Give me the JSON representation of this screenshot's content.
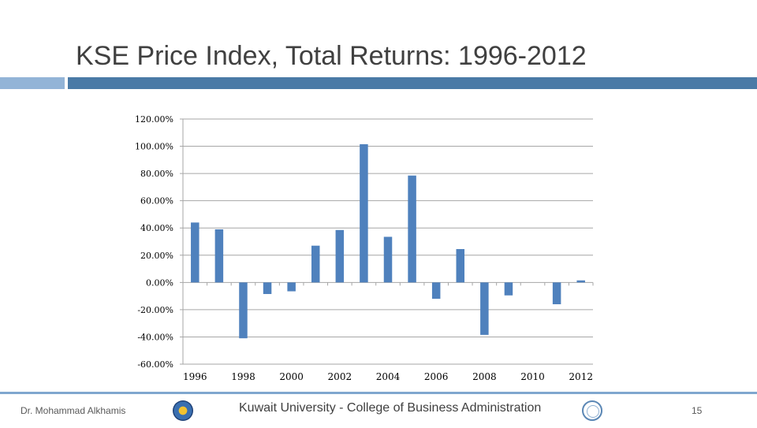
{
  "slide": {
    "title": "KSE Price Index, Total Returns: 1996-2012",
    "footer_author": "Dr. Mohammad Alkhamis",
    "footer_center": "Kuwait University - College of Business Administration",
    "page_number": "15"
  },
  "colors": {
    "bar": "#4f81bd",
    "title_rule_dark": "#4a7aa6",
    "title_rule_light": "#93b4d7",
    "gridline": "#a6a6a6"
  },
  "chart_data": {
    "type": "bar",
    "title": "",
    "xlabel": "",
    "ylabel": "",
    "categories": [
      1996,
      1997,
      1998,
      1999,
      2000,
      2001,
      2002,
      2003,
      2004,
      2005,
      2006,
      2007,
      2008,
      2009,
      2010,
      2011,
      2012
    ],
    "values": [
      44.0,
      39.0,
      -41.0,
      -8.5,
      -6.5,
      27.0,
      38.5,
      101.5,
      33.5,
      78.5,
      -12.0,
      24.5,
      -38.5,
      -9.5,
      0.0,
      -16.0,
      1.5
    ],
    "x_tick_labels": [
      "1996",
      "1998",
      "2000",
      "2002",
      "2004",
      "2006",
      "2008",
      "2010",
      "2012"
    ],
    "y_ticks": [
      120,
      100,
      80,
      60,
      40,
      20,
      0,
      -20,
      -40,
      -60
    ],
    "y_tick_labels": [
      "120.00%",
      "100.00%",
      "80.00%",
      "60.00%",
      "40.00%",
      "20.00%",
      "0.00%",
      "-20.00%",
      "-40.00%",
      "-60.00%"
    ],
    "ylim": [
      -60,
      120
    ],
    "grid": true,
    "legend": "none"
  }
}
